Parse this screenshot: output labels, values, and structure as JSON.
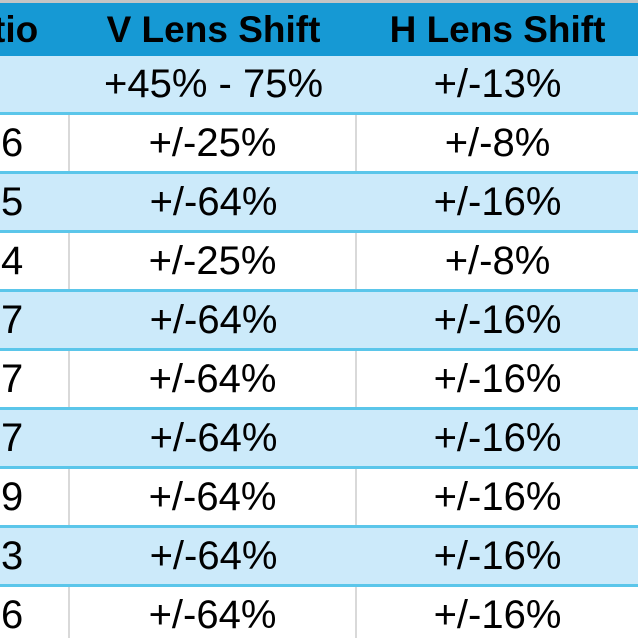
{
  "chart_data": {
    "type": "table",
    "columns": [
      "tio",
      "V Lens Shift",
      "H Lens Shift"
    ],
    "rows": [
      [
        "",
        "+45% - 75%",
        "+/-13%"
      ],
      [
        "6",
        "+/-25%",
        "+/-8%"
      ],
      [
        "5",
        "+/-64%",
        "+/-16%"
      ],
      [
        "4",
        "+/-25%",
        "+/-8%"
      ],
      [
        "7",
        "+/-64%",
        "+/-16%"
      ],
      [
        "7",
        "+/-64%",
        "+/-16%"
      ],
      [
        "7",
        "+/-64%",
        "+/-16%"
      ],
      [
        "9",
        "+/-64%",
        "+/-16%"
      ],
      [
        "3",
        "+/-64%",
        "+/-16%"
      ],
      [
        "6",
        "+/-64%",
        "+/-16%"
      ]
    ],
    "layout": {
      "header_position": "top",
      "alternating_row_shading": true,
      "first_shaded_row_index": 0,
      "left_edge_cropped": true,
      "last_row_cropped_at_bottom": true
    }
  },
  "colors": {
    "header_bg": "#1699d4",
    "header_text": "#000000",
    "row_shade_bg": "#cceafa",
    "row_plain_bg": "#ffffff",
    "row_divider": "#5bc6ea",
    "column_divider": "#d9d9d9",
    "top_strip": "#c5c5c5",
    "cell_text": "#000000"
  }
}
